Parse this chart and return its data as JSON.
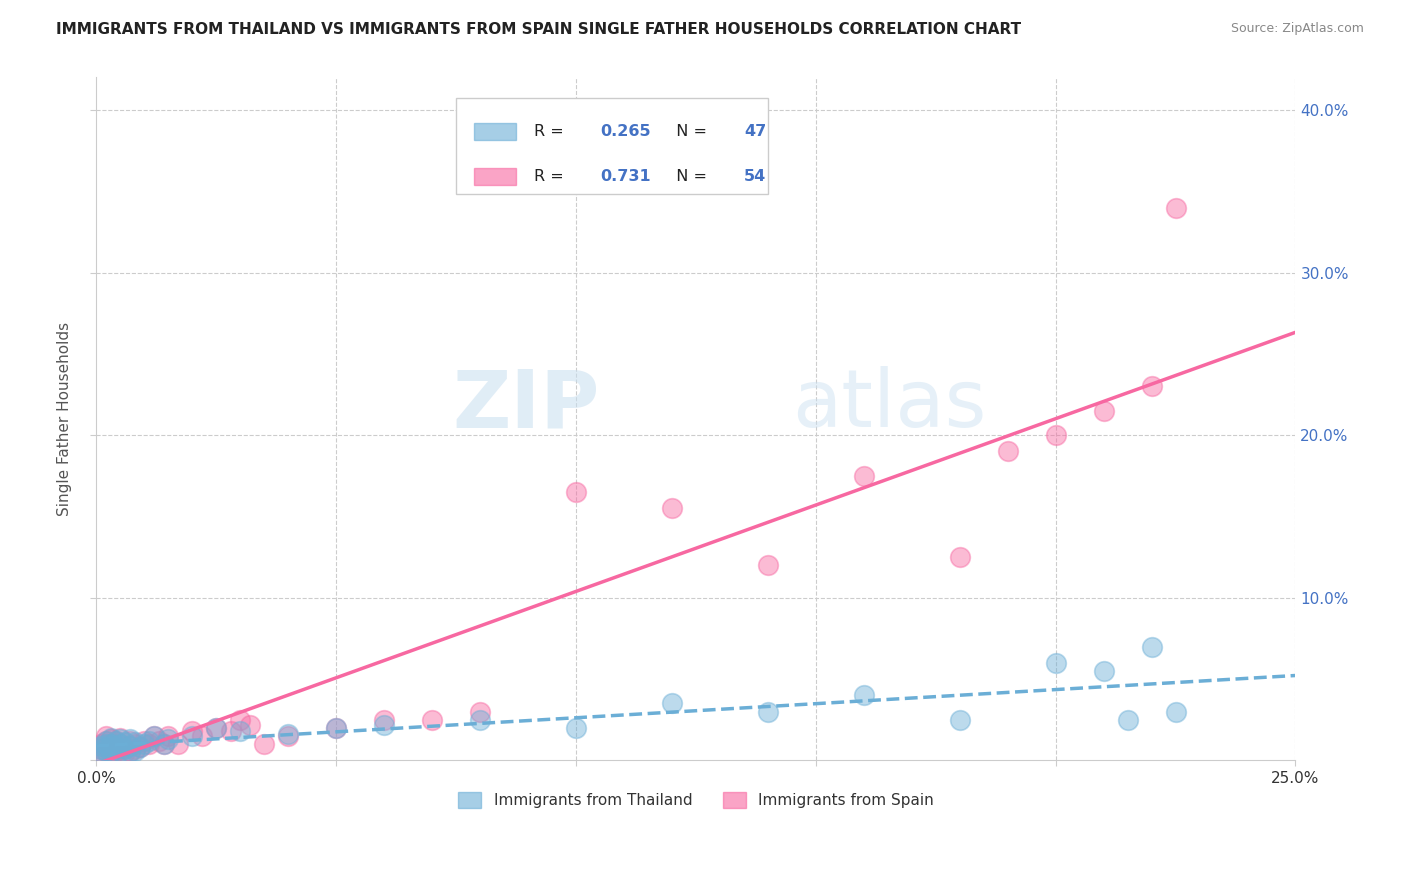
{
  "title": "IMMIGRANTS FROM THAILAND VS IMMIGRANTS FROM SPAIN SINGLE FATHER HOUSEHOLDS CORRELATION CHART",
  "source": "Source: ZipAtlas.com",
  "ylabel": "Single Father Households",
  "xlim": [
    0.0,
    0.25
  ],
  "ylim": [
    0.0,
    0.42
  ],
  "thailand_color": "#6baed6",
  "spain_color": "#f768a1",
  "thailand_R": 0.265,
  "thailand_N": 47,
  "spain_R": 0.731,
  "spain_N": 54,
  "watermark_zip": "ZIP",
  "watermark_atlas": "atlas",
  "background_color": "#ffffff",
  "grid_color": "#cccccc",
  "right_tick_color": "#4472c4",
  "thailand_x": [
    0.001,
    0.001,
    0.001,
    0.002,
    0.002,
    0.002,
    0.002,
    0.003,
    0.003,
    0.003,
    0.003,
    0.004,
    0.004,
    0.004,
    0.005,
    0.005,
    0.005,
    0.006,
    0.006,
    0.007,
    0.007,
    0.007,
    0.008,
    0.008,
    0.009,
    0.01,
    0.011,
    0.012,
    0.014,
    0.015,
    0.02,
    0.025,
    0.03,
    0.04,
    0.05,
    0.06,
    0.08,
    0.1,
    0.12,
    0.14,
    0.16,
    0.18,
    0.2,
    0.21,
    0.215,
    0.22,
    0.225
  ],
  "thailand_y": [
    0.005,
    0.007,
    0.009,
    0.006,
    0.008,
    0.01,
    0.012,
    0.005,
    0.008,
    0.01,
    0.014,
    0.007,
    0.009,
    0.012,
    0.006,
    0.01,
    0.013,
    0.007,
    0.011,
    0.005,
    0.009,
    0.013,
    0.006,
    0.011,
    0.008,
    0.01,
    0.012,
    0.015,
    0.01,
    0.013,
    0.015,
    0.02,
    0.018,
    0.016,
    0.02,
    0.022,
    0.025,
    0.02,
    0.035,
    0.03,
    0.04,
    0.025,
    0.06,
    0.055,
    0.025,
    0.07,
    0.03
  ],
  "spain_x": [
    0.001,
    0.001,
    0.001,
    0.002,
    0.002,
    0.002,
    0.002,
    0.003,
    0.003,
    0.003,
    0.003,
    0.004,
    0.004,
    0.004,
    0.005,
    0.005,
    0.005,
    0.006,
    0.006,
    0.007,
    0.007,
    0.007,
    0.008,
    0.008,
    0.009,
    0.01,
    0.011,
    0.012,
    0.013,
    0.014,
    0.015,
    0.017,
    0.02,
    0.022,
    0.025,
    0.028,
    0.03,
    0.032,
    0.035,
    0.04,
    0.05,
    0.06,
    0.07,
    0.08,
    0.1,
    0.12,
    0.14,
    0.16,
    0.18,
    0.19,
    0.2,
    0.21,
    0.22,
    0.225
  ],
  "spain_y": [
    0.005,
    0.007,
    0.01,
    0.006,
    0.009,
    0.012,
    0.015,
    0.005,
    0.008,
    0.01,
    0.013,
    0.006,
    0.009,
    0.012,
    0.007,
    0.01,
    0.014,
    0.005,
    0.008,
    0.006,
    0.009,
    0.012,
    0.007,
    0.01,
    0.008,
    0.012,
    0.01,
    0.015,
    0.012,
    0.01,
    0.015,
    0.01,
    0.018,
    0.015,
    0.02,
    0.018,
    0.025,
    0.022,
    0.01,
    0.015,
    0.02,
    0.025,
    0.025,
    0.03,
    0.165,
    0.155,
    0.12,
    0.175,
    0.125,
    0.19,
    0.2,
    0.215,
    0.23,
    0.34
  ]
}
